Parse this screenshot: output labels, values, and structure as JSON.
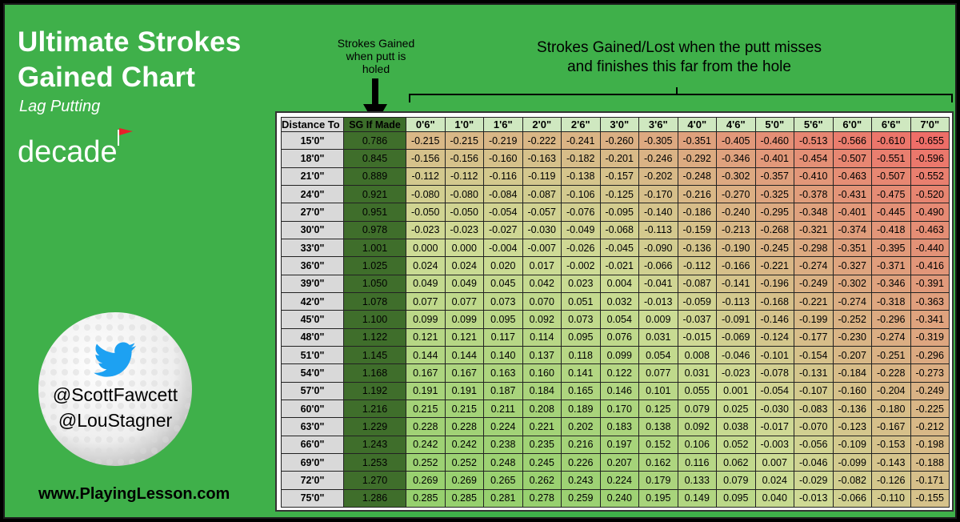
{
  "header": {
    "title_line1": "Ultimate Strokes",
    "title_line2": "Gained Chart",
    "subtitle": "Lag Putting",
    "logo_text": "decade"
  },
  "footer": {
    "handle1": "@ScottFawcett",
    "handle2": "@LouStagner",
    "website": "www.PlayingLesson.com"
  },
  "labels": {
    "sg_made": "Strokes Gained when putt is holed",
    "miss_line1": "Strokes Gained/Lost when the putt misses",
    "miss_line2": "and finishes this far from the hole"
  },
  "colors": {
    "background": "#3fb04a",
    "sg_made_column": "#3f6e2b",
    "positive_high": "#9fd47a",
    "neutral": "#c9dd96",
    "negative_low": "#f0706a"
  },
  "icons": [
    "twitter-bird-icon",
    "golf-ball-icon",
    "flag-icon",
    "down-arrow-icon"
  ],
  "chart_data": {
    "type": "table",
    "header_distance": "Distance To Hole",
    "header_made": "SG If Made",
    "columns": [
      "0'6\"",
      "1'0\"",
      "1'6\"",
      "2'0\"",
      "2'6\"",
      "3'0\"",
      "3'6\"",
      "4'0\"",
      "4'6\"",
      "5'0\"",
      "5'6\"",
      "6'0\"",
      "6'6\"",
      "7'0\""
    ],
    "rows": [
      {
        "distance": "15'0\"",
        "made": "0.786",
        "values": [
          "-0.215",
          "-0.215",
          "-0.219",
          "-0.222",
          "-0.241",
          "-0.260",
          "-0.305",
          "-0.351",
          "-0.405",
          "-0.460",
          "-0.513",
          "-0.566",
          "-0.610",
          "-0.655"
        ]
      },
      {
        "distance": "18'0\"",
        "made": "0.845",
        "values": [
          "-0.156",
          "-0.156",
          "-0.160",
          "-0.163",
          "-0.182",
          "-0.201",
          "-0.246",
          "-0.292",
          "-0.346",
          "-0.401",
          "-0.454",
          "-0.507",
          "-0.551",
          "-0.596"
        ]
      },
      {
        "distance": "21'0\"",
        "made": "0.889",
        "values": [
          "-0.112",
          "-0.112",
          "-0.116",
          "-0.119",
          "-0.138",
          "-0.157",
          "-0.202",
          "-0.248",
          "-0.302",
          "-0.357",
          "-0.410",
          "-0.463",
          "-0.507",
          "-0.552"
        ]
      },
      {
        "distance": "24'0\"",
        "made": "0.921",
        "values": [
          "-0.080",
          "-0.080",
          "-0.084",
          "-0.087",
          "-0.106",
          "-0.125",
          "-0.170",
          "-0.216",
          "-0.270",
          "-0.325",
          "-0.378",
          "-0.431",
          "-0.475",
          "-0.520"
        ]
      },
      {
        "distance": "27'0\"",
        "made": "0.951",
        "values": [
          "-0.050",
          "-0.050",
          "-0.054",
          "-0.057",
          "-0.076",
          "-0.095",
          "-0.140",
          "-0.186",
          "-0.240",
          "-0.295",
          "-0.348",
          "-0.401",
          "-0.445",
          "-0.490"
        ]
      },
      {
        "distance": "30'0\"",
        "made": "0.978",
        "values": [
          "-0.023",
          "-0.023",
          "-0.027",
          "-0.030",
          "-0.049",
          "-0.068",
          "-0.113",
          "-0.159",
          "-0.213",
          "-0.268",
          "-0.321",
          "-0.374",
          "-0.418",
          "-0.463"
        ]
      },
      {
        "distance": "33'0\"",
        "made": "1.001",
        "values": [
          "0.000",
          "0.000",
          "-0.004",
          "-0.007",
          "-0.026",
          "-0.045",
          "-0.090",
          "-0.136",
          "-0.190",
          "-0.245",
          "-0.298",
          "-0.351",
          "-0.395",
          "-0.440"
        ]
      },
      {
        "distance": "36'0\"",
        "made": "1.025",
        "values": [
          "0.024",
          "0.024",
          "0.020",
          "0.017",
          "-0.002",
          "-0.021",
          "-0.066",
          "-0.112",
          "-0.166",
          "-0.221",
          "-0.274",
          "-0.327",
          "-0.371",
          "-0.416"
        ]
      },
      {
        "distance": "39'0\"",
        "made": "1.050",
        "values": [
          "0.049",
          "0.049",
          "0.045",
          "0.042",
          "0.023",
          "0.004",
          "-0.041",
          "-0.087",
          "-0.141",
          "-0.196",
          "-0.249",
          "-0.302",
          "-0.346",
          "-0.391"
        ]
      },
      {
        "distance": "42'0\"",
        "made": "1.078",
        "values": [
          "0.077",
          "0.077",
          "0.073",
          "0.070",
          "0.051",
          "0.032",
          "-0.013",
          "-0.059",
          "-0.113",
          "-0.168",
          "-0.221",
          "-0.274",
          "-0.318",
          "-0.363"
        ]
      },
      {
        "distance": "45'0\"",
        "made": "1.100",
        "values": [
          "0.099",
          "0.099",
          "0.095",
          "0.092",
          "0.073",
          "0.054",
          "0.009",
          "-0.037",
          "-0.091",
          "-0.146",
          "-0.199",
          "-0.252",
          "-0.296",
          "-0.341"
        ]
      },
      {
        "distance": "48'0\"",
        "made": "1.122",
        "values": [
          "0.121",
          "0.121",
          "0.117",
          "0.114",
          "0.095",
          "0.076",
          "0.031",
          "-0.015",
          "-0.069",
          "-0.124",
          "-0.177",
          "-0.230",
          "-0.274",
          "-0.319"
        ]
      },
      {
        "distance": "51'0\"",
        "made": "1.145",
        "values": [
          "0.144",
          "0.144",
          "0.140",
          "0.137",
          "0.118",
          "0.099",
          "0.054",
          "0.008",
          "-0.046",
          "-0.101",
          "-0.154",
          "-0.207",
          "-0.251",
          "-0.296"
        ]
      },
      {
        "distance": "54'0\"",
        "made": "1.168",
        "values": [
          "0.167",
          "0.167",
          "0.163",
          "0.160",
          "0.141",
          "0.122",
          "0.077",
          "0.031",
          "-0.023",
          "-0.078",
          "-0.131",
          "-0.184",
          "-0.228",
          "-0.273"
        ]
      },
      {
        "distance": "57'0\"",
        "made": "1.192",
        "values": [
          "0.191",
          "0.191",
          "0.187",
          "0.184",
          "0.165",
          "0.146",
          "0.101",
          "0.055",
          "0.001",
          "-0.054",
          "-0.107",
          "-0.160",
          "-0.204",
          "-0.249"
        ]
      },
      {
        "distance": "60'0\"",
        "made": "1.216",
        "values": [
          "0.215",
          "0.215",
          "0.211",
          "0.208",
          "0.189",
          "0.170",
          "0.125",
          "0.079",
          "0.025",
          "-0.030",
          "-0.083",
          "-0.136",
          "-0.180",
          "-0.225"
        ]
      },
      {
        "distance": "63'0\"",
        "made": "1.229",
        "values": [
          "0.228",
          "0.228",
          "0.224",
          "0.221",
          "0.202",
          "0.183",
          "0.138",
          "0.092",
          "0.038",
          "-0.017",
          "-0.070",
          "-0.123",
          "-0.167",
          "-0.212"
        ]
      },
      {
        "distance": "66'0\"",
        "made": "1.243",
        "values": [
          "0.242",
          "0.242",
          "0.238",
          "0.235",
          "0.216",
          "0.197",
          "0.152",
          "0.106",
          "0.052",
          "-0.003",
          "-0.056",
          "-0.109",
          "-0.153",
          "-0.198"
        ]
      },
      {
        "distance": "69'0\"",
        "made": "1.253",
        "values": [
          "0.252",
          "0.252",
          "0.248",
          "0.245",
          "0.226",
          "0.207",
          "0.162",
          "0.116",
          "0.062",
          "0.007",
          "-0.046",
          "-0.099",
          "-0.143",
          "-0.188"
        ]
      },
      {
        "distance": "72'0\"",
        "made": "1.270",
        "values": [
          "0.269",
          "0.269",
          "0.265",
          "0.262",
          "0.243",
          "0.224",
          "0.179",
          "0.133",
          "0.079",
          "0.024",
          "-0.029",
          "-0.082",
          "-0.126",
          "-0.171"
        ]
      },
      {
        "distance": "75'0\"",
        "made": "1.286",
        "values": [
          "0.285",
          "0.285",
          "0.281",
          "0.278",
          "0.259",
          "0.240",
          "0.195",
          "0.149",
          "0.095",
          "0.040",
          "-0.013",
          "-0.066",
          "-0.110",
          "-0.155"
        ]
      }
    ]
  }
}
